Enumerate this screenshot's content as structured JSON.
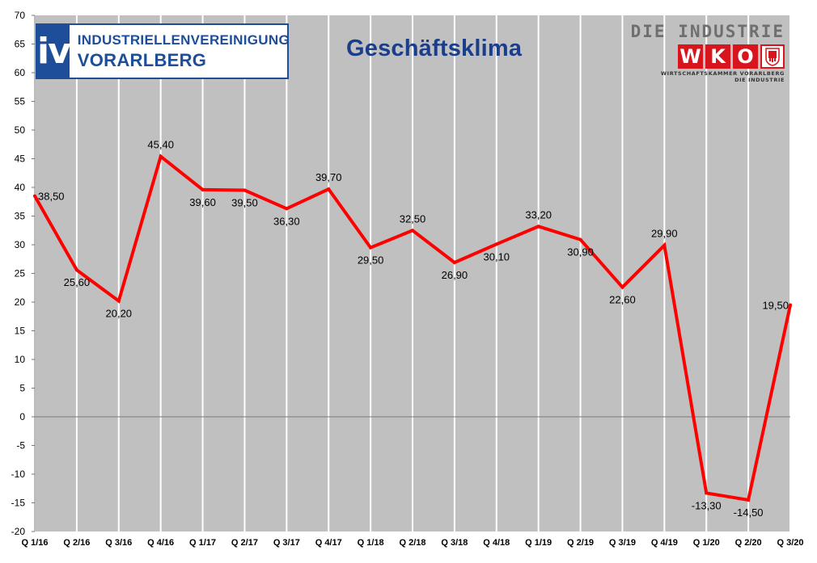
{
  "header": {
    "title": "Geschäftsklima"
  },
  "logos": {
    "iv": {
      "mark": "iv",
      "line1": "INDUSTRIELLENVEREINIGUNG",
      "line2": "VORARLBERG"
    },
    "wko": {
      "top": "DIE INDUSTRIE",
      "letters": [
        "W",
        "K",
        "O"
      ],
      "sub1": "WIRTSCHAFTSKAMMER VORARLBERG",
      "sub2": "DIE INDUSTRIE"
    }
  },
  "colors": {
    "background": "#c0c0c0",
    "gridline": "#ffffff",
    "line": "#ff0000",
    "title": "#1a3e8c",
    "iv_blue": "#1e4d99",
    "wko_red": "#d8141c"
  },
  "chart_data": {
    "type": "line",
    "title": "Geschäftsklima",
    "xlabel": "",
    "ylabel": "",
    "ylim": [
      -20,
      70
    ],
    "ytick_step": 5,
    "grid": "vertical",
    "categories": [
      "Q 1/16",
      "Q 2/16",
      "Q 3/16",
      "Q 4/16",
      "Q 1/17",
      "Q 2/17",
      "Q 3/17",
      "Q 4/17",
      "Q 1/18",
      "Q 2/18",
      "Q 3/18",
      "Q 4/18",
      "Q 1/19",
      "Q 2/19",
      "Q 3/19",
      "Q 4/19",
      "Q 1/20",
      "Q 2/20",
      "Q 3/20"
    ],
    "series": [
      {
        "values": [
          38.5,
          25.6,
          20.2,
          45.4,
          39.6,
          39.5,
          36.3,
          39.7,
          29.5,
          32.5,
          26.9,
          30.1,
          33.2,
          30.9,
          22.6,
          29.9,
          -13.3,
          -14.5,
          19.5
        ],
        "labels": [
          "38,50",
          "25,60",
          "20,20",
          "45,40",
          "39,60",
          "39,50",
          "36,30",
          "39,70",
          "29,50",
          "32,50",
          "26,90",
          "30,10",
          "33,20",
          "30,90",
          "22,60",
          "29,90",
          "-13,30",
          "-14,50",
          "19,50"
        ]
      }
    ]
  }
}
